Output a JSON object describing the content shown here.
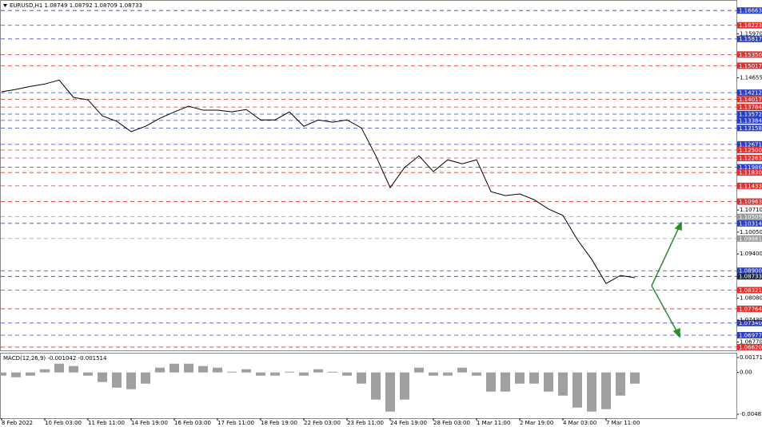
{
  "chart_data": [
    {
      "type": "line",
      "title": "EURUSD,H1  1.08749 1.08792 1.08709 1.08733",
      "categories": [
        "8 Feb 2022",
        null,
        null,
        "10 Feb 03:00",
        null,
        null,
        "11 Feb 11:00",
        null,
        null,
        "14 Feb 19:00",
        null,
        null,
        "16 Feb 03:00",
        null,
        null,
        "17 Feb 11:00",
        null,
        null,
        "18 Feb 19:00",
        null,
        null,
        "22 Feb 03:00",
        null,
        null,
        "23 Feb 11:00",
        null,
        null,
        "24 Feb 19:00",
        null,
        null,
        "28 Feb 03:00",
        null,
        null,
        "1 Mar 11:00",
        null,
        null,
        "2 Mar 19:00",
        null,
        null,
        "4 Mar 03:00",
        null,
        null,
        "7 Mar 11:00",
        null,
        null
      ],
      "series": [
        {
          "color": "#000000",
          "values": [
            1.1424,
            1.1431,
            1.144,
            1.1447,
            1.1459,
            1.1407,
            1.14,
            1.1352,
            1.1336,
            1.1305,
            1.1321,
            1.1345,
            1.1364,
            1.1381,
            1.1369,
            1.1369,
            1.1364,
            1.1371,
            1.134,
            1.134,
            1.1364,
            1.1321,
            1.134,
            1.1333,
            1.134,
            1.1316,
            1.1233,
            1.1138,
            1.1198,
            1.1233,
            1.1186,
            1.1221,
            1.1209,
            1.1221,
            1.1126,
            1.1114,
            1.1119,
            1.1102,
            1.1074,
            1.1055,
            1.0983,
            1.0924,
            1.0852,
            1.0876,
            1.0869
          ]
        }
      ],
      "ylim": [
        1.1693,
        1.065
      ],
      "yticks": [
        {
          "value": 1.1597,
          "label": "1.15970"
        },
        1.14655,
        {
          "value": 1.1071,
          "label": "1.10710"
        },
        {
          "value": 1.1005,
          "label": "1.10050"
        },
        {
          "value": 1.094,
          "label": "1.09400"
        },
        {
          "value": 1.0808,
          "label": "1.08080"
        },
        {
          "value": 1.0743,
          "label": "1.07430"
        },
        {
          "value": 1.0677,
          "label": "1.06770"
        }
      ],
      "levels": [
        {
          "value": 1.16663,
          "color": "#2a3fc8"
        },
        {
          "value": 1.16223,
          "color": "#e03030"
        },
        {
          "value": 1.15817,
          "color": "#2a3fc8"
        },
        {
          "value": 1.1535,
          "label": "1.15350",
          "color": "#e03030"
        },
        {
          "value": 1.15017,
          "color": "#e03030"
        },
        {
          "value": 1.14212,
          "color": "#2a3fc8"
        },
        {
          "value": 1.14017,
          "color": "#e03030"
        },
        {
          "value": 1.13784,
          "color": "#e03030"
        },
        {
          "value": 1.13572,
          "color": "#2a3fc8"
        },
        {
          "value": 1.13384,
          "color": "#2a3fc8"
        },
        {
          "value": 1.13158,
          "color": "#2a3fc8"
        },
        {
          "value": 1.12671,
          "color": "#2a3fc8"
        },
        {
          "value": 1.125,
          "label": "1.12500",
          "color": "#e03030"
        },
        {
          "value": 1.12263,
          "color": "#e03030"
        },
        {
          "value": 1.11986,
          "color": "#2a3fc8"
        },
        {
          "value": 1.1183,
          "label": "1.11830",
          "color": "#e03030"
        },
        {
          "value": 1.11433,
          "color": "#e03030"
        },
        {
          "value": 1.10963,
          "color": "#e03030"
        },
        {
          "value": 1.10509,
          "color": "#9a9a9a"
        },
        {
          "value": 1.10314,
          "color": "#2a3fc8"
        },
        {
          "value": 1.09861,
          "color": "#9a9a9a"
        },
        {
          "value": 1.089,
          "label": "1.08900",
          "color": "#2a3fc8"
        },
        {
          "value": 1.08733,
          "color": "#1f2a44"
        },
        {
          "value": 1.08321,
          "color": "#e03030"
        },
        {
          "value": 1.07764,
          "color": "#e03030"
        },
        {
          "value": 1.0734,
          "label": "1.07340",
          "color": "#2a3fc8"
        },
        {
          "value": 1.06977,
          "color": "#2a3fc8"
        },
        {
          "value": 1.0662,
          "label": "1.06620",
          "color": "#e03030"
        }
      ]
    },
    {
      "type": "bar",
      "title": "MACD(12,26,9) -0.001042 -0.001514",
      "color": "#a0a0a0",
      "values": [
        -0.00037,
        -0.00055,
        -0.00037,
        0.00037,
        0.00101,
        0.00074,
        -0.00037,
        -0.0011,
        -0.00175,
        -0.00193,
        -0.00129,
        0.00055,
        0.00101,
        0.00101,
        0.00074,
        0.00055,
        9e-05,
        0.00037,
        -0.00037,
        -0.00037,
        9e-05,
        -0.00037,
        0.00037,
        9e-05,
        -0.00037,
        -0.00129,
        -0.00313,
        -0.00451,
        -0.00313,
        0.00055,
        -0.00037,
        -0.00037,
        0.00055,
        -0.00037,
        -0.00221,
        -0.00221,
        -0.00129,
        -0.00129,
        -0.00221,
        -0.00267,
        -0.00405,
        -0.00451,
        -0.00423,
        -0.00267,
        -0.00129
      ],
      "ylim": [
        -0.004813,
        0.001718
      ],
      "yticks": [
        0.001718,
        {
          "value": 0,
          "label": "0.00"
        },
        -0.004813
      ]
    }
  ]
}
